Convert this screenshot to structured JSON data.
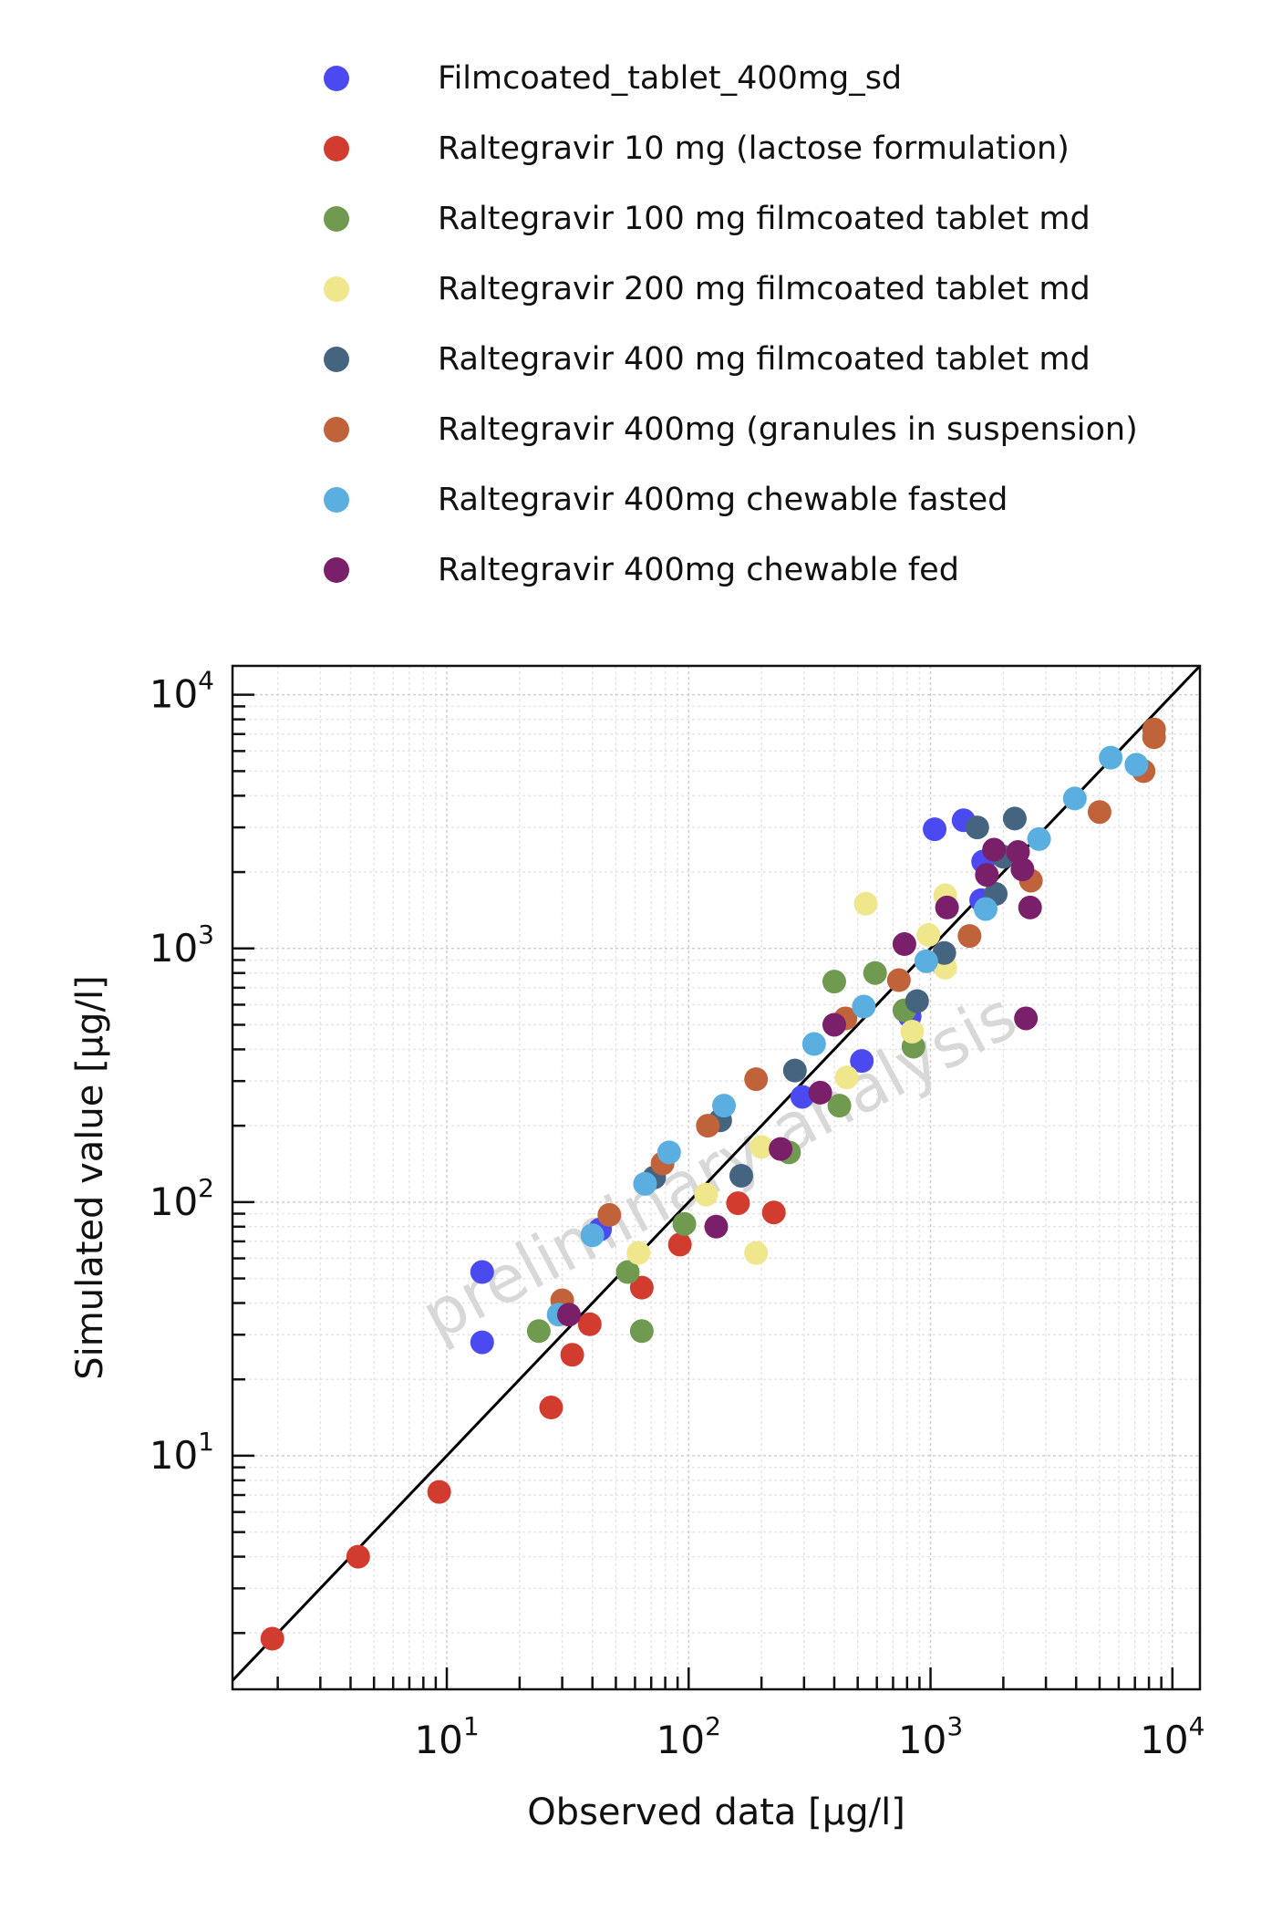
{
  "chart_data": {
    "type": "scatter",
    "xlabel": "Observed data [µg/l]",
    "ylabel": "Simulated value [µg/l]",
    "x_scale": "log",
    "y_scale": "log",
    "xlim": [
      1.3,
      13000
    ],
    "ylim": [
      1.2,
      13000
    ],
    "x_ticks": [
      {
        "base": "10",
        "exp": "1",
        "value": 10
      },
      {
        "base": "10",
        "exp": "2",
        "value": 100
      },
      {
        "base": "10",
        "exp": "3",
        "value": 1000
      },
      {
        "base": "10",
        "exp": "4",
        "value": 10000
      }
    ],
    "y_ticks": [
      {
        "base": "10",
        "exp": "1",
        "value": 10
      },
      {
        "base": "10",
        "exp": "2",
        "value": 100
      },
      {
        "base": "10",
        "exp": "3",
        "value": 1000
      },
      {
        "base": "10",
        "exp": "4",
        "value": 10000
      }
    ],
    "grid": true,
    "identity_line": true,
    "watermark": "preliminary analysis",
    "legend_position": "top",
    "series": [
      {
        "name": "Filmcoated_tablet_400mg_sd",
        "color": "#4a4af0",
        "points": [
          [
            14,
            53
          ],
          [
            14,
            28
          ],
          [
            43,
            78
          ],
          [
            295,
            260
          ],
          [
            520,
            360
          ],
          [
            820,
            540
          ],
          [
            1040,
            2950
          ],
          [
            1370,
            3200
          ],
          [
            1620,
            1550
          ],
          [
            1650,
            2200
          ],
          [
            1120,
            870
          ]
        ]
      },
      {
        "name": "Raltegravir 10 mg (lactose formulation)",
        "color": "#d23c2e",
        "points": [
          [
            1.9,
            1.9
          ],
          [
            4.3,
            4
          ],
          [
            9.3,
            7.2
          ],
          [
            27,
            15.5
          ],
          [
            33,
            25
          ],
          [
            39,
            33
          ],
          [
            64,
            46
          ],
          [
            92,
            68
          ],
          [
            160,
            99
          ],
          [
            225,
            91
          ]
        ]
      },
      {
        "name": "Raltegravir 100 mg filmcoated tablet md",
        "color": "#6f9a4f",
        "points": [
          [
            24,
            31
          ],
          [
            56,
            53
          ],
          [
            64,
            31
          ],
          [
            96,
            82
          ],
          [
            260,
            157
          ],
          [
            420,
            240
          ],
          [
            400,
            740
          ],
          [
            590,
            800
          ],
          [
            780,
            570
          ],
          [
            850,
            410
          ]
        ]
      },
      {
        "name": "Raltegravir 200 mg filmcoated tablet md",
        "color": "#f0e68c",
        "points": [
          [
            62,
            63
          ],
          [
            118,
            107
          ],
          [
            190,
            63
          ],
          [
            200,
            165
          ],
          [
            450,
            310
          ],
          [
            540,
            1500
          ],
          [
            840,
            470
          ],
          [
            980,
            1130
          ],
          [
            1150,
            1620
          ],
          [
            1150,
            840
          ]
        ]
      },
      {
        "name": "Raltegravir 400 mg filmcoated tablet md",
        "color": "#456480",
        "points": [
          [
            72,
            125
          ],
          [
            135,
            210
          ],
          [
            165,
            127
          ],
          [
            275,
            330
          ],
          [
            880,
            620
          ],
          [
            1140,
            960
          ],
          [
            1560,
            3000
          ],
          [
            1860,
            1640
          ],
          [
            2000,
            2300
          ],
          [
            2230,
            3250
          ]
        ]
      },
      {
        "name": "Raltegravir 400mg (granules in suspension)",
        "color": "#c0633a",
        "points": [
          [
            30,
            41
          ],
          [
            47,
            89
          ],
          [
            78,
            142
          ],
          [
            120,
            200
          ],
          [
            190,
            305
          ],
          [
            445,
            530
          ],
          [
            740,
            750
          ],
          [
            1450,
            1120
          ],
          [
            2600,
            1850
          ],
          [
            5000,
            3450
          ],
          [
            7600,
            5000
          ],
          [
            8400,
            7300
          ],
          [
            8400,
            6800
          ]
        ]
      },
      {
        "name": "Raltegravir 400mg chewable fasted",
        "color": "#5aafe0",
        "points": [
          [
            29,
            36
          ],
          [
            40,
            74
          ],
          [
            66,
            118
          ],
          [
            83,
            157
          ],
          [
            140,
            240
          ],
          [
            330,
            420
          ],
          [
            530,
            590
          ],
          [
            960,
            890
          ],
          [
            1690,
            1430
          ],
          [
            2810,
            2700
          ],
          [
            3950,
            3900
          ],
          [
            5560,
            5650
          ],
          [
            7100,
            5300
          ]
        ]
      },
      {
        "name": "Raltegravir 400mg chewable fed",
        "color": "#7a1f6a",
        "points": [
          [
            32,
            36
          ],
          [
            130,
            80
          ],
          [
            240,
            162
          ],
          [
            350,
            270
          ],
          [
            400,
            500
          ],
          [
            780,
            1040
          ],
          [
            1170,
            1450
          ],
          [
            1710,
            1950
          ],
          [
            1830,
            2450
          ],
          [
            2400,
            2050
          ],
          [
            2300,
            2400
          ],
          [
            2580,
            1450
          ],
          [
            2480,
            530
          ]
        ]
      }
    ]
  }
}
